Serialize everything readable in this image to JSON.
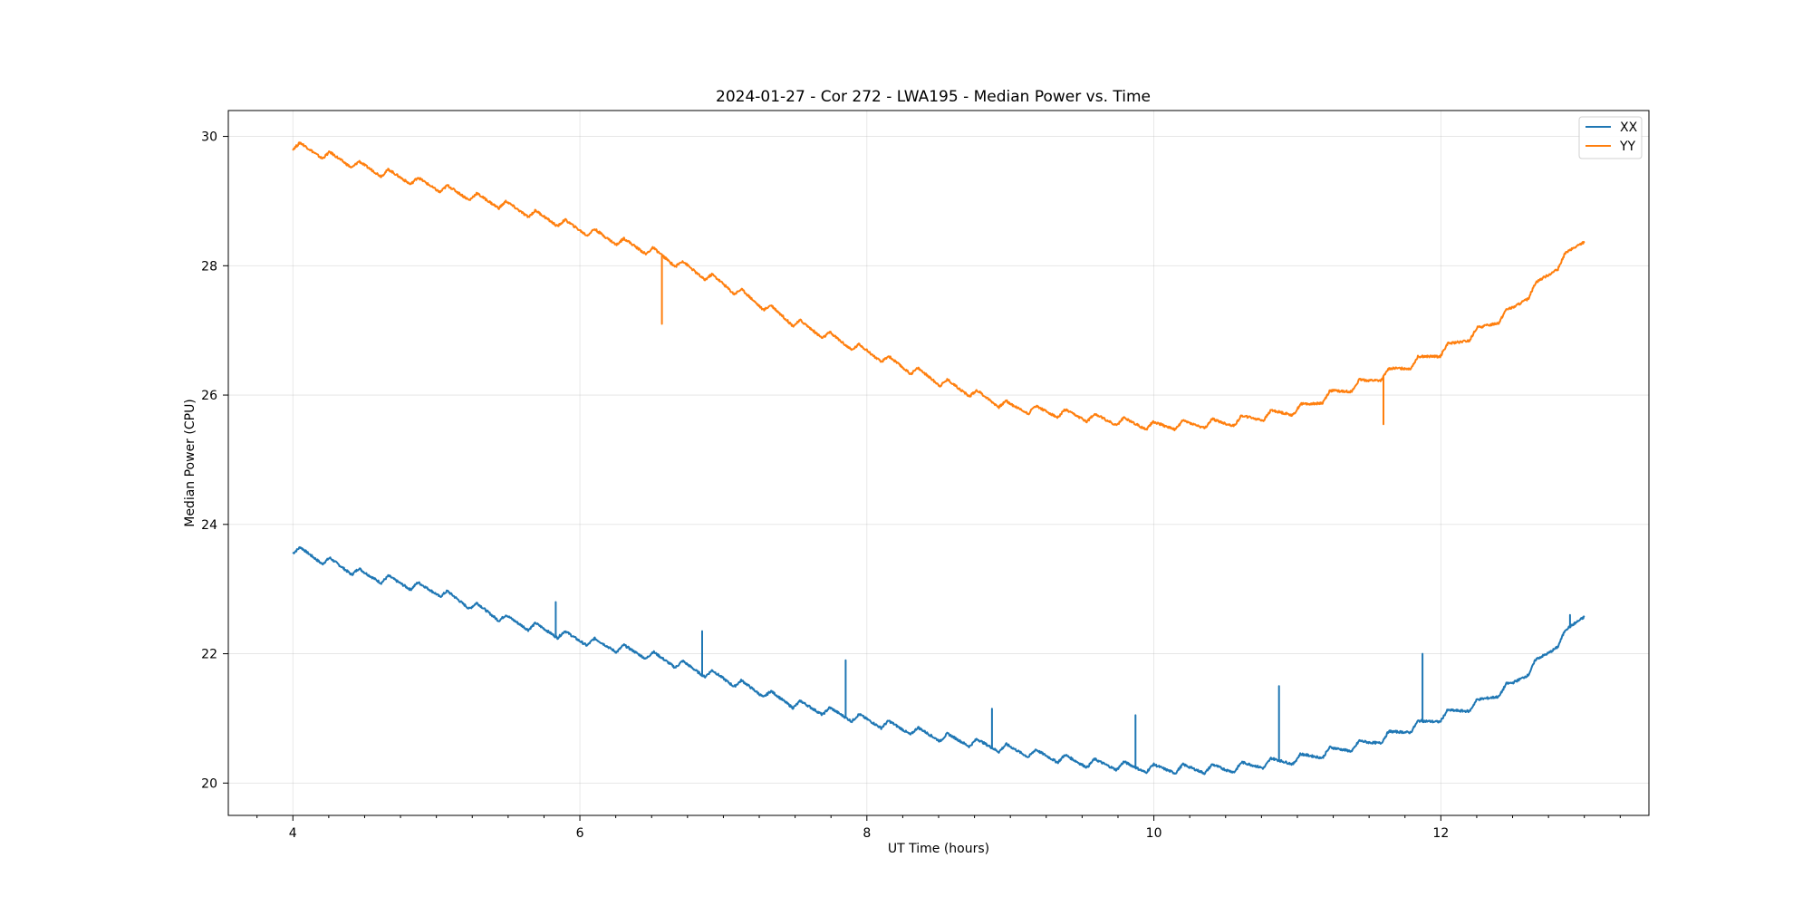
{
  "chart_data": {
    "type": "line",
    "title": "2024-01-27 - Cor 272 - LWA195 - Median Power vs. Time",
    "xlabel": "UT Time (hours)",
    "ylabel": "Median Power (CPU)",
    "xlim": [
      3.55,
      13.45
    ],
    "ylim": [
      19.5,
      30.4
    ],
    "xticks": [
      4,
      6,
      8,
      10,
      12
    ],
    "xtick_labels": [
      "4",
      "6",
      "8",
      "10",
      "12"
    ],
    "yticks": [
      20,
      22,
      24,
      26,
      28,
      30
    ],
    "ytick_labels": [
      "20",
      "22",
      "24",
      "26",
      "28",
      "30"
    ],
    "grid": true,
    "legend_position": "top-right",
    "series": [
      {
        "name": "XX",
        "color": "#1f77b4",
        "x": [
          4.0,
          4.5,
          5.0,
          5.5,
          6.0,
          6.5,
          7.0,
          7.5,
          8.0,
          8.5,
          9.0,
          9.5,
          10.0,
          10.5,
          11.0,
          11.5,
          12.0,
          12.25,
          12.5,
          12.75,
          13.0
        ],
        "y": [
          23.6,
          23.2,
          22.95,
          22.5,
          22.2,
          21.95,
          21.6,
          21.2,
          20.95,
          20.7,
          20.5,
          20.3,
          20.2,
          20.2,
          20.35,
          20.6,
          21.0,
          21.2,
          21.5,
          22.0,
          22.6
        ],
        "spikes": [
          [
            5.83,
            22.8
          ],
          [
            6.85,
            22.35
          ],
          [
            7.85,
            21.9
          ],
          [
            8.87,
            21.15
          ],
          [
            9.87,
            21.05
          ],
          [
            10.87,
            21.5
          ],
          [
            11.87,
            22.0
          ],
          [
            12.9,
            22.6
          ]
        ]
      },
      {
        "name": "YY",
        "color": "#ff7f0e",
        "x": [
          4.0,
          4.5,
          5.0,
          5.5,
          6.0,
          6.5,
          7.0,
          7.5,
          8.0,
          8.5,
          9.0,
          9.5,
          10.0,
          10.5,
          11.0,
          11.25,
          11.5,
          12.0,
          12.25,
          12.5,
          12.75,
          13.0
        ],
        "y": [
          29.85,
          29.5,
          29.2,
          28.9,
          28.55,
          28.2,
          27.7,
          27.1,
          26.65,
          26.2,
          25.8,
          25.65,
          25.5,
          25.55,
          25.75,
          26.0,
          26.2,
          26.65,
          26.95,
          27.3,
          27.85,
          28.4
        ],
        "spikes": [
          [
            6.57,
            27.1
          ],
          [
            11.6,
            25.55
          ]
        ]
      }
    ]
  }
}
